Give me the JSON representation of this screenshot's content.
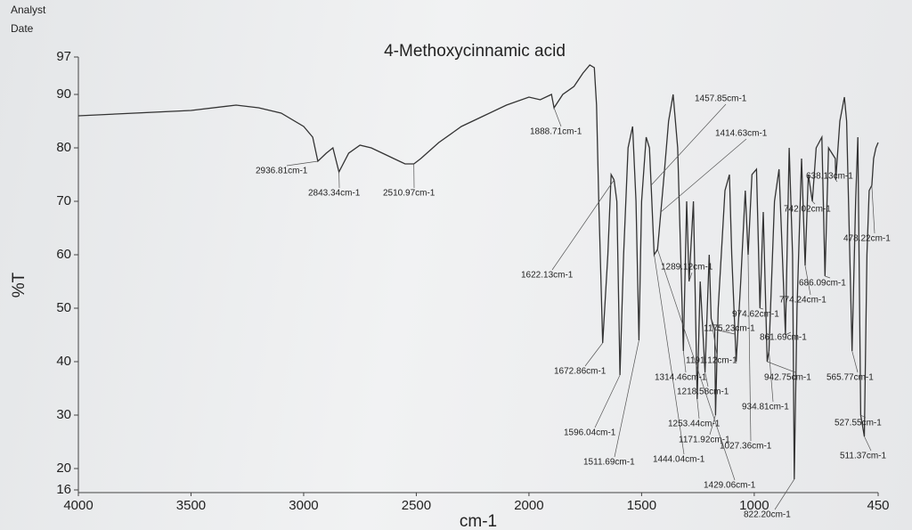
{
  "header": {
    "analyst": "Analyst",
    "date": "Date"
  },
  "chart_data": {
    "type": "line",
    "title": "4-Methoxycinnamic acid",
    "x_label": "cm-1",
    "y_label": "%T",
    "x": [
      4000,
      3500,
      3300,
      3200,
      3100,
      3000,
      2960,
      2936.81,
      2900,
      2870,
      2843.34,
      2800,
      2750,
      2700,
      2650,
      2600,
      2550,
      2510.97,
      2480,
      2400,
      2300,
      2200,
      2100,
      2000,
      1950,
      1900,
      1888.71,
      1850,
      1800,
      1760,
      1730,
      1710,
      1700,
      1690,
      1672.86,
      1650,
      1635,
      1622.13,
      1610,
      1596.04,
      1580,
      1560,
      1540,
      1525,
      1511.69,
      1500,
      1480,
      1465,
      1457.85,
      1444.04,
      1429.06,
      1414.63,
      1400,
      1380,
      1360,
      1340,
      1314.46,
      1300,
      1289.12,
      1270,
      1253.44,
      1240,
      1218.58,
      1200,
      1191.12,
      1175.23,
      1171.92,
      1160,
      1130,
      1110,
      1100,
      1080,
      1060,
      1040,
      1027.36,
      1010,
      990,
      974.62,
      960,
      942.75,
      934.81,
      910,
      890,
      861.69,
      845,
      830,
      822.2,
      810,
      790,
      774.24,
      760,
      742.02,
      725,
      700,
      686.09,
      670,
      640,
      638.13,
      620,
      600,
      590,
      565.77,
      550,
      540,
      527.55,
      511.37,
      500,
      490,
      478.22,
      470,
      460,
      450
    ],
    "series": [
      {
        "name": "4-Methoxycinnamic acid",
        "color": "#333333",
        "values": [
          86,
          87,
          88,
          87.5,
          86.5,
          84,
          82,
          77.5,
          79,
          80,
          75.5,
          79,
          80.5,
          80,
          79,
          78,
          77,
          77,
          78,
          81,
          84,
          86,
          88,
          89.5,
          89,
          90,
          87.5,
          90,
          91.5,
          94,
          95.5,
          95,
          88,
          70,
          43.5,
          60,
          75,
          74,
          70,
          37.5,
          60,
          80,
          84,
          70,
          44,
          70,
          82,
          80,
          73,
          60,
          61,
          68,
          75,
          85,
          90,
          80,
          42,
          70,
          55,
          70,
          33,
          55,
          38,
          60,
          48,
          46,
          30,
          50,
          72,
          75,
          60,
          40,
          55,
          72,
          60,
          75,
          76,
          50,
          68,
          40,
          42,
          70,
          76,
          45,
          80,
          60,
          18,
          50,
          78,
          58,
          75,
          70,
          80,
          82,
          56,
          80,
          78,
          74,
          85,
          89.5,
          85,
          42,
          70,
          82,
          30,
          26,
          60,
          72,
          73,
          78,
          80,
          81
        ]
      }
    ],
    "xlim": [
      4000,
      450
    ],
    "ylim": [
      16,
      97
    ],
    "xticks": [
      4000,
      3500,
      3000,
      2500,
      2000,
      1500,
      1000,
      450
    ],
    "yticks": [
      16,
      20,
      30,
      40,
      50,
      60,
      70,
      80,
      90,
      97
    ],
    "annotations": [
      {
        "text": "1888.71cm-1",
        "x": 1888.71
      },
      {
        "text": "2936.81cm-1",
        "x": 2936.81
      },
      {
        "text": "2843.34cm-1",
        "x": 2843.34
      },
      {
        "text": "2510.97cm-1",
        "x": 2510.97
      },
      {
        "text": "1457.85cm-1",
        "x": 1457.85
      },
      {
        "text": "1414.63cm-1",
        "x": 1414.63
      },
      {
        "text": "1622.13cm-1",
        "x": 1622.13
      },
      {
        "text": "1289.12cm-1",
        "x": 1289.12
      },
      {
        "text": "1672.86cm-1",
        "x": 1672.86
      },
      {
        "text": "1596.04cm-1",
        "x": 1596.04
      },
      {
        "text": "1511.69cm-1",
        "x": 1511.69
      },
      {
        "text": "1444.04cm-1",
        "x": 1444.04
      },
      {
        "text": "1429.06cm-1",
        "x": 1429.06
      },
      {
        "text": "1314.46cm-1",
        "x": 1314.46
      },
      {
        "text": "1191.12cm-1",
        "x": 1191.12
      },
      {
        "text": "1218.58cm-1",
        "x": 1218.58
      },
      {
        "text": "1253.44cm-1",
        "x": 1253.44
      },
      {
        "text": "1171.92cm-1",
        "x": 1171.92
      },
      {
        "text": "1027.36cm-1",
        "x": 1027.36
      },
      {
        "text": "1175.23cm-1",
        "x": 1175.23
      },
      {
        "text": "974.62cm-1",
        "x": 974.62
      },
      {
        "text": "942.75cm-1",
        "x": 942.75
      },
      {
        "text": "934.81cm-1",
        "x": 934.81
      },
      {
        "text": "861.69cm-1",
        "x": 861.69
      },
      {
        "text": "822.20cm-1",
        "x": 822.2
      },
      {
        "text": "774.24cm-1",
        "x": 774.24
      },
      {
        "text": "742.02cm-1",
        "x": 742.02
      },
      {
        "text": "686.09cm-1",
        "x": 686.09
      },
      {
        "text": "638.13cm-1",
        "x": 638.13
      },
      {
        "text": "565.77cm-1",
        "x": 565.77
      },
      {
        "text": "527.55cm-1",
        "x": 527.55
      },
      {
        "text": "511.37cm-1",
        "x": 511.37
      },
      {
        "text": "478.22cm-1",
        "x": 478.22
      }
    ]
  }
}
